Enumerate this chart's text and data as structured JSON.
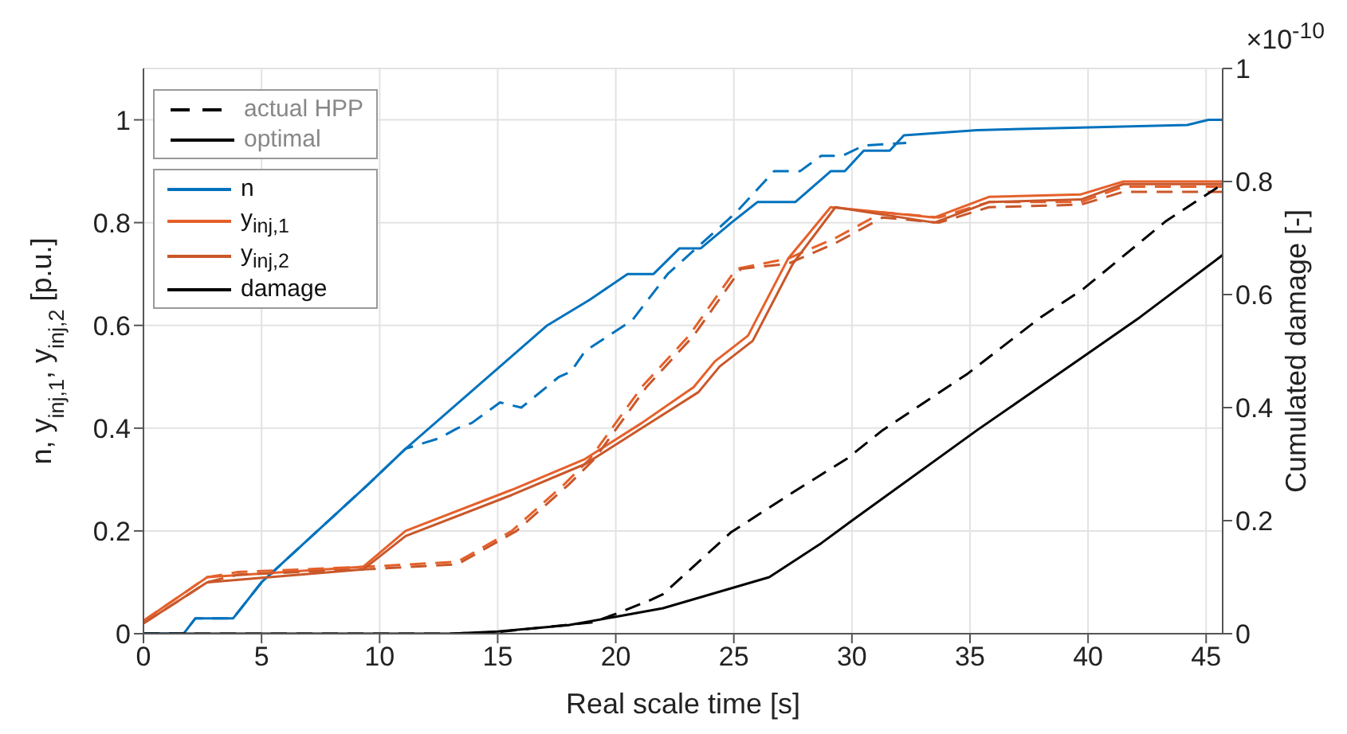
{
  "chart_data": {
    "type": "line",
    "xlabel": "Real scale time [s]",
    "ylabel": "n, y$_{inj,1}$, y$_{inj,2}$ [p.u.]",
    "y2label": "Cumulated damage [-]",
    "xlim": [
      0,
      45.7
    ],
    "xticks": [
      0,
      5,
      10,
      15,
      20,
      25,
      30,
      35,
      40,
      45
    ],
    "ylim": [
      0,
      1.1
    ],
    "yticks": [
      0,
      0.2,
      0.4,
      0.6,
      0.8,
      1
    ],
    "y2lim": [
      0,
      1
    ],
    "y2ticks": [
      0,
      0.2,
      0.4,
      0.6,
      0.8,
      1
    ],
    "grid": true,
    "legend": "top left",
    "marker": "none",
    "annotations": [
      "actual HPP",
      "optimal",
      "×10$^{-10}$"
    ],
    "series": [
      {
        "color": "#0072bd",
        "line_style": "dashed",
        "x": [
          0,
          1.7,
          2.2,
          3.8,
          5,
          9.5,
          11.1,
          12.5,
          13.3,
          13.9,
          15.1,
          16,
          17.6,
          18.1,
          18.7,
          20.7,
          22.2,
          25.1,
          26.7,
          27.8,
          28.7,
          29.6,
          30.5,
          32.3
        ],
        "values": [
          0,
          0,
          0.03,
          0.03,
          0.1,
          0.29,
          0.36,
          0.38,
          0.4,
          0.41,
          0.45,
          0.44,
          0.5,
          0.51,
          0.55,
          0.61,
          0.7,
          0.82,
          0.9,
          0.9,
          0.93,
          0.93,
          0.95,
          0.955
        ]
      },
      {
        "name": "n",
        "color": "#0072bd",
        "line_style": "solid",
        "x": [
          0,
          1.7,
          2.2,
          3.8,
          5,
          9.5,
          11.1,
          17.1,
          18.9,
          20.5,
          21.6,
          22.7,
          23.6,
          24.9,
          26,
          27.6,
          29.1,
          29.7,
          30.5,
          31.6,
          32.2,
          35.3,
          39.7,
          44.2,
          45.1,
          45.7
        ],
        "values": [
          0,
          0,
          0.03,
          0.03,
          0.1,
          0.29,
          0.36,
          0.6,
          0.65,
          0.7,
          0.7,
          0.75,
          0.75,
          0.8,
          0.84,
          0.84,
          0.9,
          0.9,
          0.94,
          0.94,
          0.97,
          0.98,
          0.985,
          0.99,
          1,
          1
        ]
      },
      {
        "color": "#e5602a",
        "line_style": "dashed",
        "x": [
          0,
          2.7,
          4,
          9.3,
          13.3,
          15.6,
          17.8,
          18.9,
          21.1,
          23.1,
          25.1,
          27.3,
          29.3,
          31.3,
          33.7,
          35.8,
          39.7,
          41.5,
          45.7
        ],
        "values": [
          0.025,
          0.11,
          0.12,
          0.13,
          0.14,
          0.2,
          0.29,
          0.34,
          0.48,
          0.58,
          0.71,
          0.73,
          0.77,
          0.82,
          0.81,
          0.84,
          0.84,
          0.87,
          0.87
        ]
      },
      {
        "name": "y$_{inj,1}$",
        "color": "#e5602a",
        "line_style": "solid",
        "x": [
          0,
          2.7,
          9.3,
          11.1,
          15.6,
          18.7,
          21.1,
          23.3,
          24.2,
          25.6,
          27.3,
          29.1,
          33.5,
          35.8,
          39.7,
          41.5,
          45.7
        ],
        "values": [
          0.025,
          0.11,
          0.13,
          0.2,
          0.28,
          0.34,
          0.41,
          0.48,
          0.53,
          0.58,
          0.73,
          0.83,
          0.81,
          0.85,
          0.855,
          0.88,
          0.88
        ]
      },
      {
        "color": "#c9572a",
        "line_style": "dashed",
        "x": [
          0,
          2.7,
          4,
          9.3,
          13.3,
          15.8,
          18,
          19.1,
          21.3,
          23.3,
          25.3,
          27.3,
          29.3,
          31.3,
          33.7,
          35.8,
          39.7,
          41.5,
          45.7
        ],
        "values": [
          0.02,
          0.1,
          0.115,
          0.125,
          0.135,
          0.2,
          0.29,
          0.34,
          0.48,
          0.58,
          0.71,
          0.72,
          0.76,
          0.81,
          0.8,
          0.83,
          0.835,
          0.86,
          0.86
        ]
      },
      {
        "name": "y$_{inj,2}$",
        "color": "#c9572a",
        "line_style": "solid",
        "x": [
          0,
          2.7,
          9.3,
          11.1,
          15.6,
          18.7,
          21.1,
          23.5,
          24.4,
          25.8,
          27.5,
          29.3,
          33.5,
          35.8,
          39.7,
          41.5,
          45.7
        ],
        "values": [
          0.02,
          0.1,
          0.125,
          0.19,
          0.27,
          0.33,
          0.4,
          0.47,
          0.52,
          0.57,
          0.72,
          0.83,
          0.8,
          0.84,
          0.845,
          0.875,
          0.875
        ]
      },
      {
        "axis": "y2",
        "color": "#000000",
        "line_style": "dashed",
        "x": [
          0,
          13,
          15,
          19,
          20,
          21.5,
          22,
          24.9,
          27.5,
          29.8,
          31.3,
          34.9,
          38,
          39.8,
          43.3,
          45.5
        ],
        "values": [
          0,
          0,
          0.003,
          0.02,
          0.035,
          0.06,
          0.07,
          0.18,
          0.25,
          0.31,
          0.36,
          0.46,
          0.56,
          0.61,
          0.73,
          0.79
        ]
      },
      {
        "name": "damage",
        "axis": "y2",
        "color": "#000000",
        "line_style": "solid",
        "x": [
          0,
          13,
          15,
          18,
          20,
          22,
          26.5,
          28.7,
          30,
          35.3,
          39.8,
          42.2,
          45.7
        ],
        "values": [
          0,
          0,
          0.004,
          0.015,
          0.03,
          0.045,
          0.1,
          0.16,
          0.2,
          0.36,
          0.49,
          0.56,
          0.67
        ]
      }
    ]
  }
}
